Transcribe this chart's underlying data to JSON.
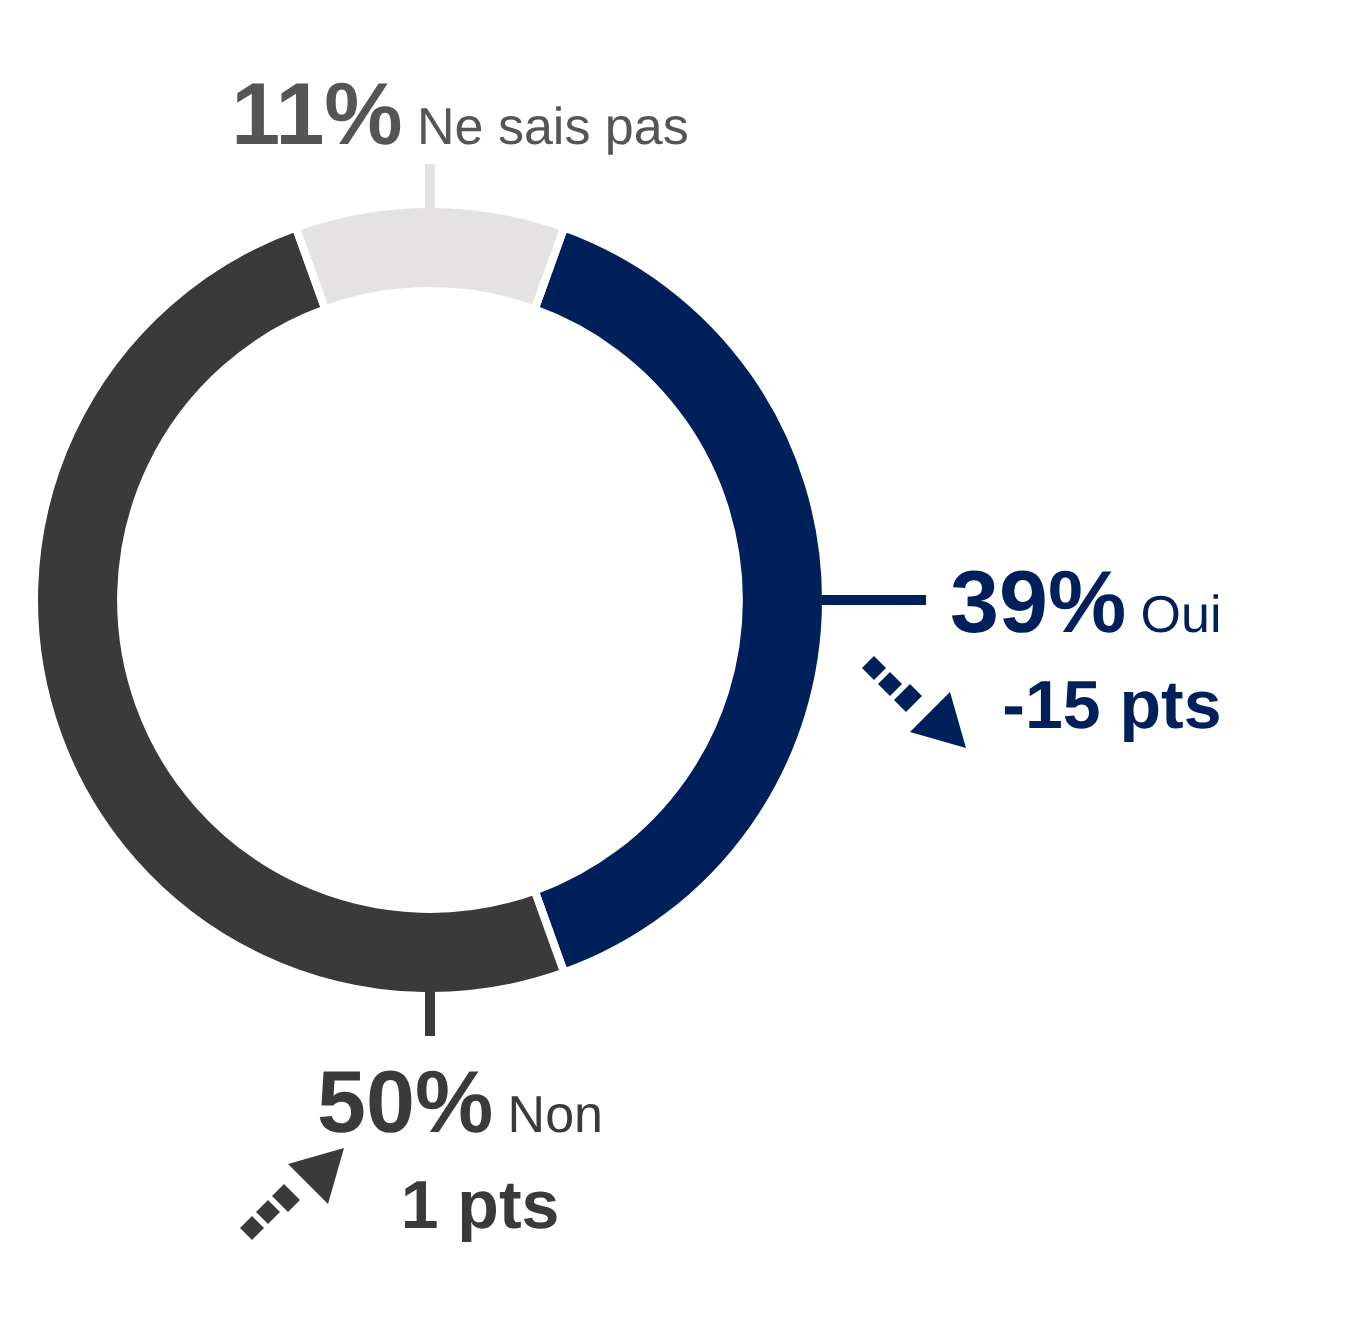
{
  "chart_data": {
    "type": "donut",
    "categories": [
      "Oui",
      "Non",
      "Ne sais pas"
    ],
    "values": [
      39,
      50,
      11
    ],
    "colors": [
      "#00205b",
      "#3a3a3a",
      "#e4e2e3"
    ],
    "value_labels": [
      "39%",
      "50%",
      "11%"
    ],
    "annotations": [
      {
        "text": "-15 pts",
        "x": "Oui"
      },
      {
        "text": "1 pts",
        "x": "Non"
      }
    ],
    "legend": false
  }
}
